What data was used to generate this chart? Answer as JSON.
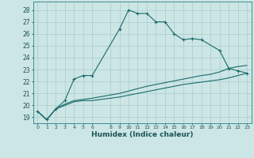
{
  "title": "",
  "xlabel": "Humidex (Indice chaleur)",
  "background_color": "#cce5e5",
  "grid_color": "#aacccc",
  "line_color": "#1a6b6b",
  "xlim": [
    -0.5,
    23.5
  ],
  "ylim": [
    18.5,
    28.7
  ],
  "xticks": [
    0,
    1,
    2,
    3,
    4,
    5,
    6,
    8,
    9,
    10,
    11,
    12,
    13,
    14,
    15,
    16,
    17,
    18,
    19,
    20,
    21,
    22,
    23
  ],
  "yticks": [
    19,
    20,
    21,
    22,
    23,
    24,
    25,
    26,
    27,
    28
  ],
  "line1_x": [
    0,
    1,
    2,
    3,
    4,
    5,
    6,
    9,
    10,
    11,
    12,
    13,
    14,
    15,
    16,
    17,
    18,
    20,
    21,
    22,
    23
  ],
  "line1_y": [
    19.5,
    18.8,
    19.7,
    20.4,
    22.2,
    22.5,
    22.5,
    26.4,
    28.0,
    27.7,
    27.7,
    27.0,
    27.0,
    26.0,
    25.5,
    25.6,
    25.5,
    24.6,
    23.1,
    22.9,
    22.7
  ],
  "line2_x": [
    0,
    1,
    2,
    3,
    4,
    5,
    6,
    9,
    10,
    11,
    12,
    13,
    14,
    15,
    16,
    17,
    18,
    19,
    20,
    21,
    22,
    23
  ],
  "line2_y": [
    19.5,
    18.8,
    19.7,
    20.0,
    20.3,
    20.4,
    20.4,
    20.7,
    20.85,
    21.0,
    21.15,
    21.3,
    21.45,
    21.6,
    21.75,
    21.85,
    21.95,
    22.05,
    22.15,
    22.3,
    22.5,
    22.7
  ],
  "line3_x": [
    0,
    1,
    2,
    3,
    4,
    5,
    6,
    9,
    10,
    11,
    12,
    13,
    14,
    15,
    16,
    17,
    18,
    19,
    20,
    21,
    22,
    23
  ],
  "line3_y": [
    19.5,
    18.8,
    19.7,
    20.1,
    20.4,
    20.5,
    20.6,
    21.0,
    21.2,
    21.4,
    21.6,
    21.75,
    21.9,
    22.05,
    22.2,
    22.35,
    22.5,
    22.6,
    22.8,
    23.1,
    23.25,
    23.35
  ]
}
